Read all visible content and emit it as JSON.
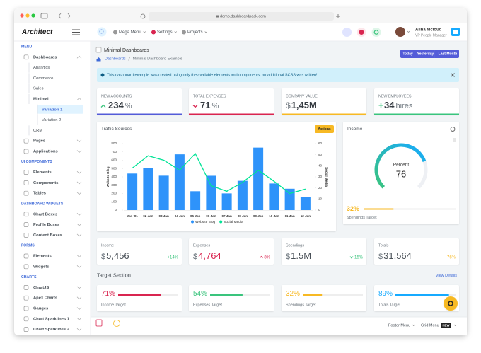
{
  "browser": {
    "url": "demo.dashboardpack.com"
  },
  "sidebar": {
    "logo": "Architect",
    "sections": [
      {
        "title": "MENU",
        "items": [
          {
            "label": "Dashboards",
            "children": [
              {
                "label": "Analytics"
              },
              {
                "label": "Commerce"
              },
              {
                "label": "Sales"
              },
              {
                "label": "Minimal",
                "children": [
                  {
                    "label": "Variation 1",
                    "active": true
                  },
                  {
                    "label": "Variation 2"
                  }
                ]
              },
              {
                "label": "CRM"
              }
            ]
          },
          {
            "label": "Pages"
          },
          {
            "label": "Applications"
          }
        ]
      },
      {
        "title": "UI COMPONENTS",
        "items": [
          {
            "label": "Elements"
          },
          {
            "label": "Components"
          },
          {
            "label": "Tables"
          }
        ]
      },
      {
        "title": "DASHBOARD WIDGETS",
        "items": [
          {
            "label": "Chart Boxes"
          },
          {
            "label": "Profile Boxes"
          },
          {
            "label": "Content Boxes"
          }
        ]
      },
      {
        "title": "FORMS",
        "items": [
          {
            "label": "Elements"
          },
          {
            "label": "Widgets"
          }
        ]
      },
      {
        "title": "CHARTS",
        "items": [
          {
            "label": "ChartJS"
          },
          {
            "label": "Apex Charts"
          },
          {
            "label": "Gauges"
          },
          {
            "label": "Chart Sparklines 1"
          },
          {
            "label": "Chart Sparklines 2"
          }
        ]
      }
    ]
  },
  "header": {
    "nav": [
      "Mega Menu",
      "Settings",
      "Projects"
    ],
    "user": {
      "name": "Alina Mcloud",
      "role": "VP People Manager"
    }
  },
  "page": {
    "title": "Minimal Dashboards",
    "breadcrumb": [
      "Dashboards",
      "Minimal Dashboard Example"
    ],
    "ranges": [
      "Today",
      "Yesterday",
      "Last Month"
    ]
  },
  "alert": "This dashboard example was created using only the available elements and components, no additional SCSS was written!",
  "stats": [
    {
      "label": "NEW ACCOUNTS",
      "value": 234,
      "suffix": "%",
      "trend": "up",
      "color": "#545cd8"
    },
    {
      "label": "TOTAL EXPENSES",
      "value": 71,
      "suffix": "%",
      "trend": "down",
      "color": "#d92550"
    },
    {
      "label": "COMPANY VALUE",
      "prefix": "$",
      "value": "1,45M",
      "color": "#f7b924"
    },
    {
      "label": "NEW EMPLOYEES",
      "prefix": "+",
      "prefix_color": "#3ac47d",
      "value": 34,
      "suffix": "hires",
      "color": "#3ac47d"
    }
  ],
  "traffic_actions": "Actions",
  "chart_data": {
    "type": "bar",
    "title": "Traffic Sources",
    "categories": [
      "Jan '01",
      "02 Jan",
      "03 Jan",
      "04 Jan",
      "05 Jan",
      "06 Jan",
      "07 Jan",
      "08 Jan",
      "09 Jan",
      "10 Jan",
      "11 Jan",
      "12 Jan"
    ],
    "series": [
      {
        "name": "Website Blog",
        "color": "#2e93fa",
        "values": [
          440,
          505,
          414,
          671,
          227,
          413,
          201,
          352,
          752,
          320,
          257,
          160
        ]
      },
      {
        "name": "Social Media",
        "type": "line",
        "axis": "y2",
        "color": "#00e396",
        "values": [
          38,
          49,
          45,
          36,
          51,
          22,
          17,
          25,
          36,
          26,
          15,
          19
        ]
      }
    ],
    "ylabel": "Website Blog",
    "y2label": "Social Media",
    "ylim": [
      0,
      800
    ],
    "yticks": [
      0,
      100,
      200,
      300,
      400,
      500,
      600,
      700,
      800
    ],
    "y2lim": [
      0,
      60
    ],
    "y2ticks": [
      0,
      10,
      20,
      30,
      40,
      50,
      60
    ],
    "legend": "bottom"
  },
  "income": {
    "title": "Income",
    "gauge": {
      "label": "Percent",
      "value": 76
    },
    "target": {
      "value": 32,
      "label": "32%",
      "name": "Spendings Target",
      "color": "#f7b924"
    }
  },
  "summary": [
    {
      "label": "Income",
      "prefix": "$",
      "value": "5,456",
      "change": "+14%",
      "color": "#3ac47d"
    },
    {
      "label": "Expenses",
      "prefix": "$",
      "value": "4,764",
      "value_color": "#d92550",
      "change": "8%",
      "trend": "up",
      "color": "#d92550"
    },
    {
      "label": "Spendings",
      "prefix": "$",
      "value": "1.5M",
      "change": "15%",
      "trend": "down",
      "color": "#3ac47d"
    },
    {
      "label": "Totals",
      "prefix": "$",
      "value": "31,564",
      "change": "+76%",
      "color": "#f7b924"
    }
  ],
  "targets": {
    "title": "Target Section",
    "link": "View Details",
    "items": [
      {
        "value": 71,
        "label": "71%",
        "name": "Income Target",
        "color": "#d92550"
      },
      {
        "value": 54,
        "label": "54%",
        "name": "Expenses Target",
        "color": "#3ac47d"
      },
      {
        "value": 32,
        "label": "32%",
        "name": "Spendings Target",
        "color": "#f7b924"
      },
      {
        "value": 89,
        "label": "89%",
        "name": "Totals Target",
        "color": "#16aaff"
      }
    ]
  },
  "footer": {
    "menus": [
      "Footer Menu",
      "Grid Menu"
    ],
    "badge": "NEW"
  }
}
